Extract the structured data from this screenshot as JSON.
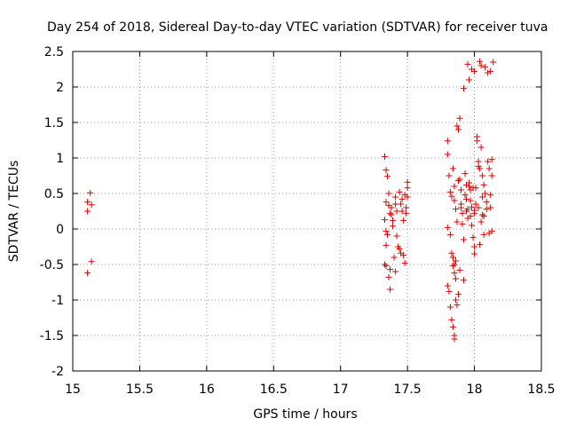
{
  "chart_data": {
    "type": "scatter",
    "title": "Day 254 of 2018, Sidereal Day-to-day VTEC variation (SDTVAR) for receiver tuva",
    "xlabel": "GPS time / hours",
    "ylabel": "SDTVAR / TECUs",
    "xlim": [
      15,
      18.5
    ],
    "ylim": [
      -2,
      2.5
    ],
    "xticks": [
      "15",
      "15.5",
      "16",
      "16.5",
      "17",
      "17.5",
      "18",
      "18.5"
    ],
    "yticks": [
      "2.5",
      "2",
      "1.5",
      "1",
      "0.5",
      "0",
      "-0.5",
      "-1",
      "-1.5",
      "-2"
    ],
    "grid": true,
    "marker": "+",
    "series": [
      {
        "name": "SDTVAR",
        "color": "#e00000",
        "points": [
          [
            15.11,
            0.38
          ],
          [
            15.11,
            0.25
          ],
          [
            15.13,
            0.51
          ],
          [
            15.14,
            0.34
          ],
          [
            15.11,
            -0.62
          ],
          [
            15.14,
            -0.46
          ],
          [
            17.33,
            1.02
          ],
          [
            17.34,
            0.83
          ],
          [
            17.35,
            0.74
          ],
          [
            17.36,
            0.5
          ],
          [
            17.34,
            0.38
          ],
          [
            17.33,
            0.13
          ],
          [
            17.34,
            -0.03
          ],
          [
            17.35,
            -0.08
          ],
          [
            17.34,
            -0.23
          ],
          [
            17.33,
            -0.5
          ],
          [
            17.34,
            -0.52
          ],
          [
            17.36,
            -0.68
          ],
          [
            17.37,
            -0.85
          ],
          [
            17.37,
            -0.57
          ],
          [
            17.38,
            0.3
          ],
          [
            17.38,
            0.2
          ],
          [
            17.39,
            0.04
          ],
          [
            17.4,
            -0.4
          ],
          [
            17.41,
            -0.6
          ],
          [
            17.41,
            0.45
          ],
          [
            17.42,
            0.25
          ],
          [
            17.42,
            -0.1
          ],
          [
            17.44,
            0.52
          ],
          [
            17.45,
            0.35
          ],
          [
            17.44,
            -0.28
          ],
          [
            17.45,
            -0.34
          ],
          [
            17.46,
            0.25
          ],
          [
            17.47,
            0.12
          ],
          [
            17.47,
            -0.37
          ],
          [
            17.48,
            -0.48
          ],
          [
            17.49,
            0.3
          ],
          [
            17.49,
            0.22
          ],
          [
            17.5,
            0.58
          ],
          [
            17.5,
            0.66
          ],
          [
            17.5,
            0.45
          ],
          [
            17.36,
            0.33
          ],
          [
            17.39,
            0.12
          ],
          [
            17.43,
            -0.25
          ],
          [
            17.46,
            0.42
          ],
          [
            17.48,
            0.48
          ],
          [
            17.37,
            0.22
          ],
          [
            17.41,
            0.35
          ],
          [
            17.8,
            1.24
          ],
          [
            17.8,
            1.05
          ],
          [
            17.81,
            0.75
          ],
          [
            17.82,
            0.52
          ],
          [
            17.83,
            0.46
          ],
          [
            17.84,
            0.85
          ],
          [
            17.85,
            0.6
          ],
          [
            17.85,
            0.4
          ],
          [
            17.86,
            0.28
          ],
          [
            17.8,
            0.02
          ],
          [
            17.82,
            -0.08
          ],
          [
            17.83,
            -0.34
          ],
          [
            17.84,
            -0.4
          ],
          [
            17.85,
            -0.5
          ],
          [
            17.85,
            -0.62
          ],
          [
            17.86,
            -0.7
          ],
          [
            17.8,
            -0.8
          ],
          [
            17.81,
            -0.88
          ],
          [
            17.82,
            -1.1
          ],
          [
            17.83,
            -1.28
          ],
          [
            17.84,
            -1.38
          ],
          [
            17.85,
            -1.5
          ],
          [
            17.85,
            -1.55
          ],
          [
            17.86,
            -1.0
          ],
          [
            17.87,
            -1.07
          ],
          [
            17.88,
            -0.92
          ],
          [
            17.89,
            -0.58
          ],
          [
            17.87,
            1.45
          ],
          [
            17.88,
            1.4
          ],
          [
            17.89,
            1.56
          ],
          [
            17.89,
            0.7
          ],
          [
            17.9,
            0.55
          ],
          [
            17.9,
            0.35
          ],
          [
            17.91,
            0.22
          ],
          [
            17.91,
            0.07
          ],
          [
            17.92,
            -0.15
          ],
          [
            17.92,
            -0.72
          ],
          [
            17.92,
            1.98
          ],
          [
            17.93,
            0.78
          ],
          [
            17.94,
            0.62
          ],
          [
            17.94,
            0.42
          ],
          [
            17.95,
            0.28
          ],
          [
            17.95,
            0.15
          ],
          [
            17.95,
            2.32
          ],
          [
            17.96,
            2.1
          ],
          [
            17.96,
            0.65
          ],
          [
            17.97,
            0.55
          ],
          [
            17.97,
            0.4
          ],
          [
            17.98,
            0.31
          ],
          [
            17.98,
            0.05
          ],
          [
            17.98,
            2.25
          ],
          [
            17.99,
            0.58
          ],
          [
            17.99,
            -0.12
          ],
          [
            18.0,
            0.26
          ],
          [
            18.0,
            0.22
          ],
          [
            18.0,
            -0.25
          ],
          [
            18.0,
            2.22
          ],
          [
            18.01,
            0.35
          ],
          [
            18.02,
            1.3
          ],
          [
            18.02,
            1.24
          ],
          [
            18.03,
            0.95
          ],
          [
            18.03,
            0.88
          ],
          [
            18.03,
            0.3
          ],
          [
            18.04,
            -0.22
          ],
          [
            18.04,
            2.36
          ],
          [
            18.05,
            2.3
          ],
          [
            18.05,
            1.15
          ],
          [
            18.06,
            0.75
          ],
          [
            18.06,
            0.45
          ],
          [
            18.06,
            0.2
          ],
          [
            18.07,
            0.18
          ],
          [
            18.07,
            -0.08
          ],
          [
            18.08,
            2.28
          ],
          [
            18.08,
            0.5
          ],
          [
            18.09,
            0.38
          ],
          [
            18.09,
            0.28
          ],
          [
            18.1,
            2.2
          ],
          [
            18.1,
            0.95
          ],
          [
            18.11,
            -0.06
          ],
          [
            18.12,
            0.48
          ],
          [
            18.12,
            0.3
          ],
          [
            18.12,
            2.22
          ],
          [
            18.13,
            0.98
          ],
          [
            18.13,
            0.75
          ],
          [
            18.13,
            -0.03
          ],
          [
            18.14,
            2.35
          ],
          [
            17.88,
            0.68
          ],
          [
            17.9,
            0.3
          ],
          [
            17.93,
            0.48
          ],
          [
            17.96,
            0.6
          ],
          [
            17.97,
            0.18
          ],
          [
            18.01,
            0.58
          ],
          [
            18.04,
            0.85
          ],
          [
            18.05,
            0.1
          ],
          [
            17.84,
            -0.52
          ],
          [
            17.86,
            -0.45
          ],
          [
            17.87,
            0.1
          ],
          [
            17.94,
            0.25
          ],
          [
            18.0,
            -0.35
          ],
          [
            18.07,
            0.62
          ],
          [
            18.11,
            0.85
          ]
        ]
      }
    ]
  }
}
